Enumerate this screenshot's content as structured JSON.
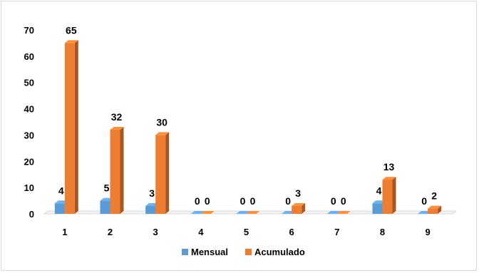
{
  "chart_data": {
    "type": "bar",
    "categories": [
      "1",
      "2",
      "3",
      "4",
      "5",
      "6",
      "7",
      "8",
      "9"
    ],
    "series": [
      {
        "name": "Mensual",
        "values": [
          4,
          5,
          3,
          0,
          0,
          0,
          0,
          4,
          0
        ],
        "color": "#5b9bd5"
      },
      {
        "name": "Acumulado",
        "values": [
          65,
          32,
          30,
          0,
          0,
          3,
          0,
          13,
          2
        ],
        "color": "#ed7d31"
      }
    ],
    "ylim": [
      0,
      70
    ],
    "yticks": [
      0,
      10,
      20,
      30,
      40,
      50,
      60,
      70
    ],
    "grid": false,
    "legend": "bottom",
    "style": "3d-clustered-column",
    "data_labels": true
  }
}
